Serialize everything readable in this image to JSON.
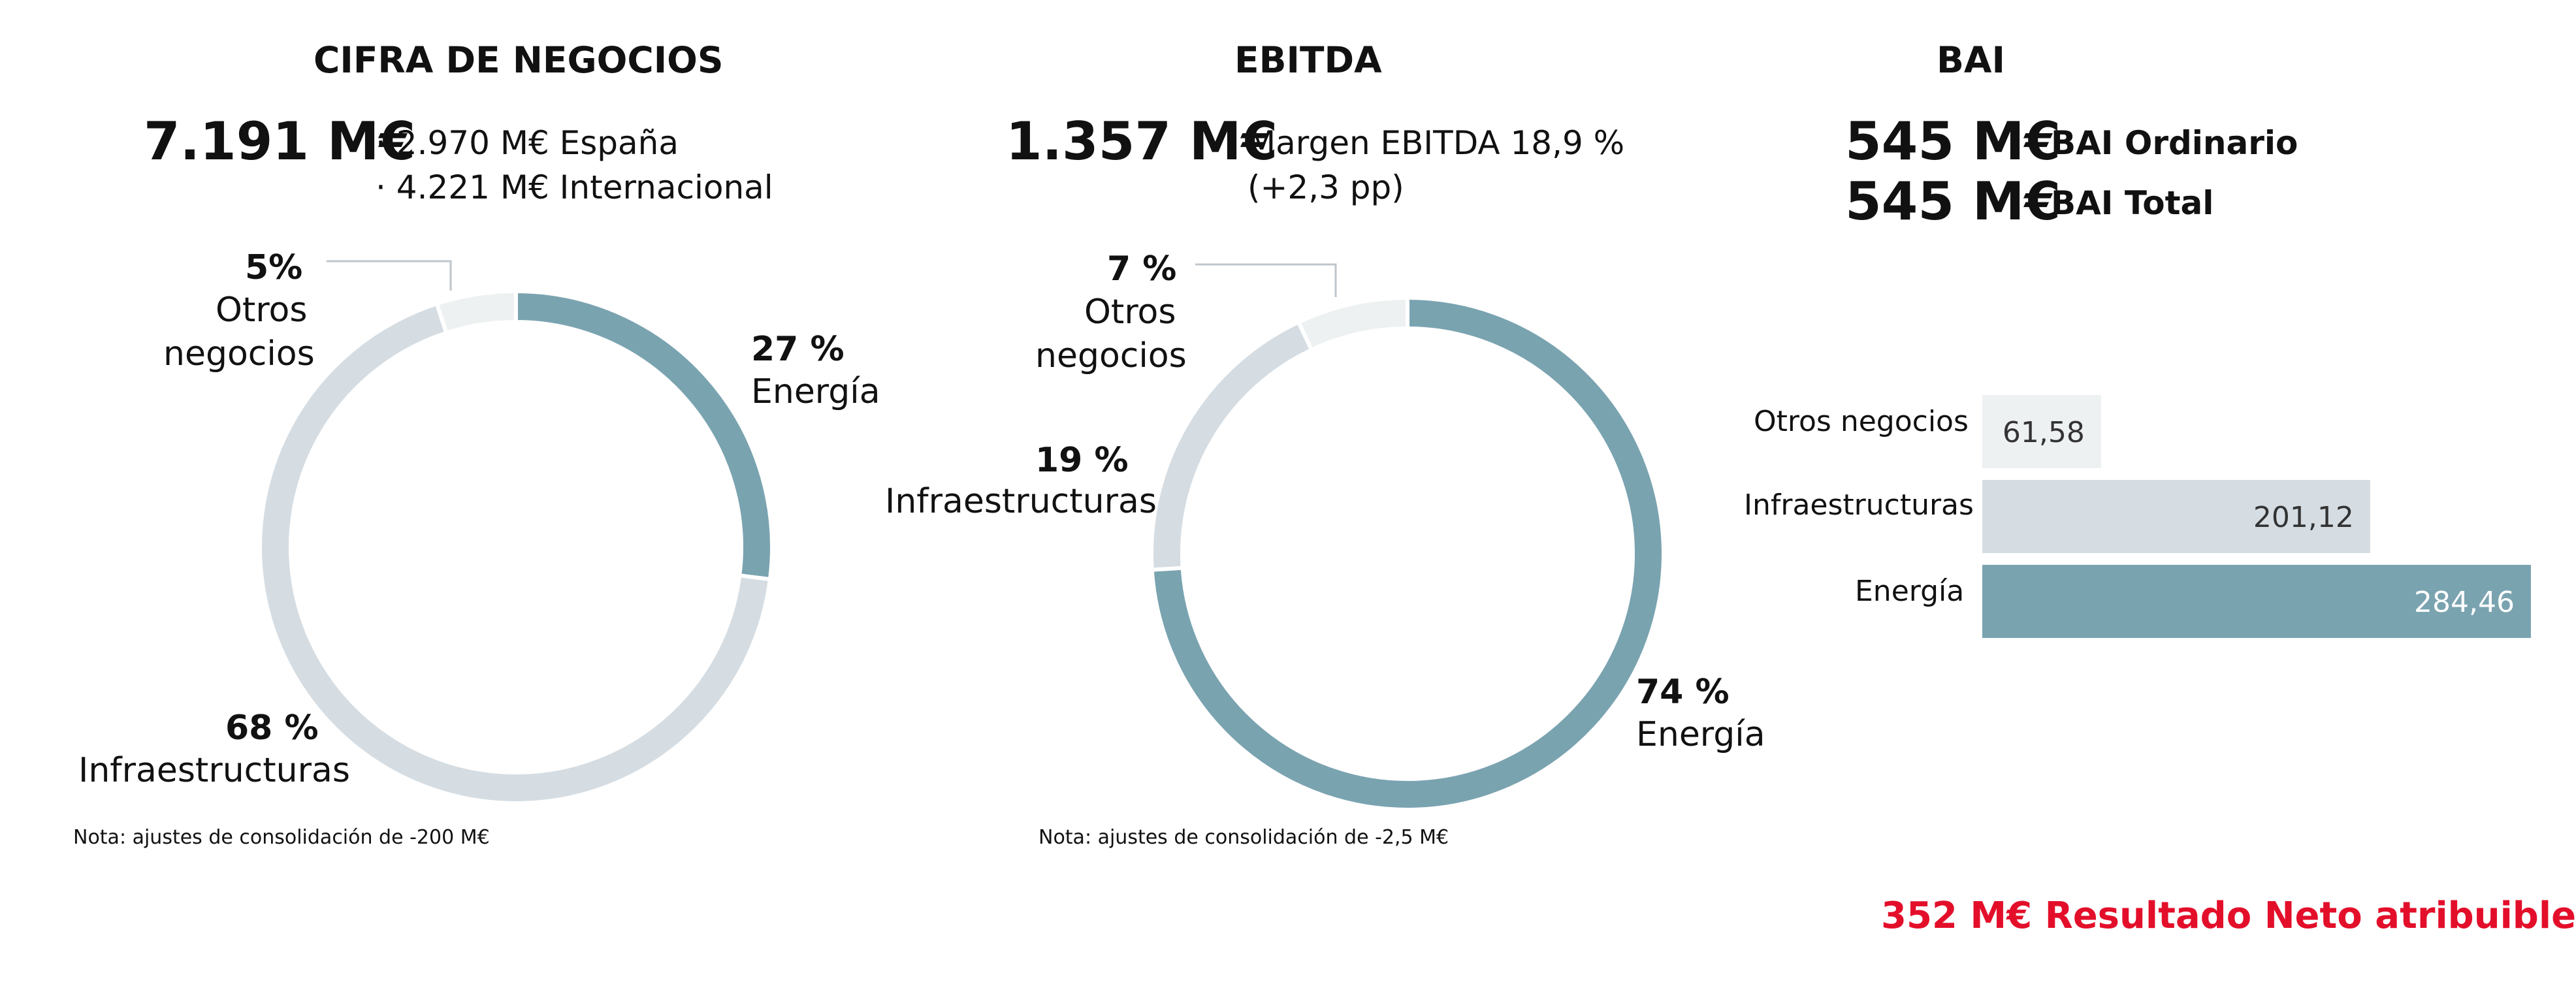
{
  "panels": {
    "cifra": {
      "title": "CIFRA DE NEGOCIOS",
      "total": "7.191 M€",
      "detail": [
        "· 2.970 M€ España",
        "· 4.221 M€ Internacional"
      ],
      "note": "Nota: ajustes de consolidación de -200 M€"
    },
    "ebitda": {
      "title": "EBITDA",
      "total": "1.357 M€",
      "detail": [
        "Margen EBITDA 18,9 %",
        "(+2,3 pp)"
      ],
      "note": "Nota: ajustes de consolidación de -2,5 M€"
    },
    "bai": {
      "title": "BAI",
      "rows": [
        {
          "value": "545 M€",
          "label": "BAI Ordinario"
        },
        {
          "value": "545 M€",
          "label": "BAI Total"
        }
      ]
    }
  },
  "footer": {
    "resultado": "352 M€ Resultado Neto atribuible"
  },
  "colors": {
    "energia": "#7aa3b0",
    "infra": "#d5dde3",
    "otros": "#eef1f2",
    "accent": "#e30f2a"
  },
  "chart_data": [
    {
      "type": "pie",
      "title": "CIFRA DE NEGOCIOS",
      "slices": [
        {
          "name": "Energía",
          "value": 27,
          "label": "27 %"
        },
        {
          "name": "Infraestructuras",
          "value": 68,
          "label": "68 %"
        },
        {
          "name": "Otros negocios",
          "value": 5,
          "label": "5%"
        }
      ],
      "category_labels": {
        "energia": "Energía",
        "infra": "Infraestructuras",
        "otros_1": "Otros",
        "otros_2": "negocios"
      }
    },
    {
      "type": "pie",
      "title": "EBITDA",
      "slices": [
        {
          "name": "Energía",
          "value": 74,
          "label": "74 %"
        },
        {
          "name": "Infraestructuras",
          "value": 19,
          "label": "19 %"
        },
        {
          "name": "Otros negocios",
          "value": 7,
          "label": "7 %"
        }
      ],
      "category_labels": {
        "energia": "Energía",
        "infra": "Infraestructuras",
        "otros_1": "Otros",
        "otros_2": "negocios"
      }
    },
    {
      "type": "bar",
      "title": "BAI",
      "categories": [
        "Otros negocios",
        "Infraestructuras",
        "Energía"
      ],
      "values": [
        61.58,
        201.12,
        284.46
      ],
      "value_labels": [
        "61,58",
        "201,12",
        "284,46"
      ]
    }
  ]
}
